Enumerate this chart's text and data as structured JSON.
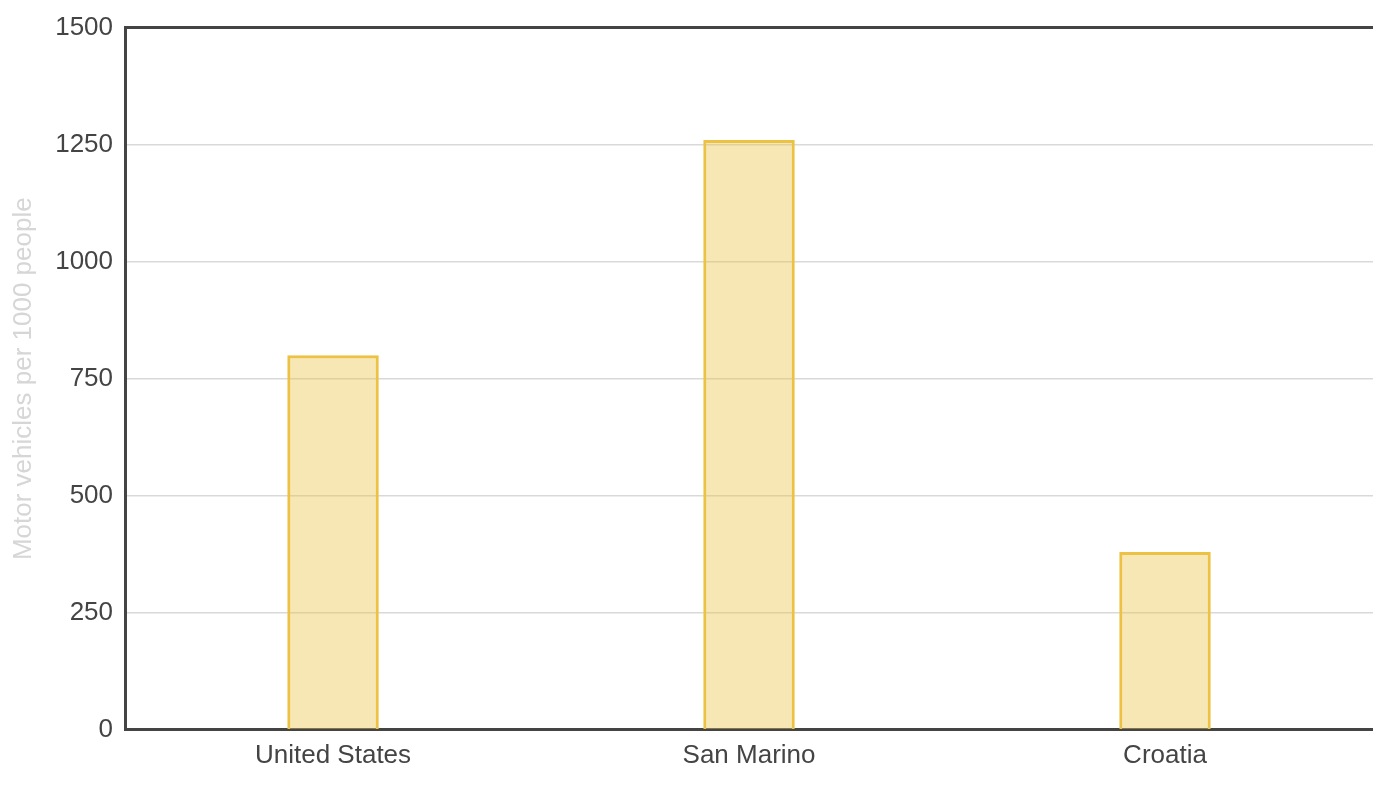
{
  "chart_data": {
    "type": "bar",
    "ylabel": "Motor vehicles per 1000 people",
    "categories": [
      "United States",
      "San Marino",
      "Croatia"
    ],
    "values": [
      800,
      1260,
      380
    ],
    "color": "#ecc244",
    "ylim": [
      0,
      1500
    ],
    "yticks": [
      0,
      250,
      500,
      750,
      1000,
      1250,
      1500
    ],
    "grid": "y",
    "legend": false
  }
}
